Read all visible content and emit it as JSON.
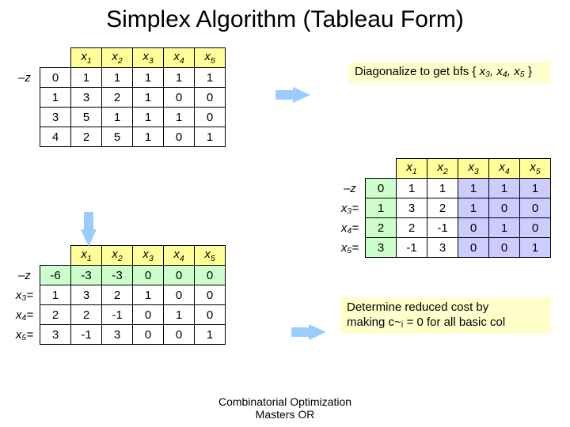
{
  "title": "Simplex Algorithm (Tableau Form)",
  "footer_line1": "Combinatorial Optimization",
  "footer_line2": "Masters OR",
  "note1_pre": "Diagonalize to get bfs { ",
  "note1_vars": "x₃, x₄, x₅",
  "note1_post": " }",
  "note2_line1": "Determine reduced cost by",
  "note2_line2": "making c~ⱼ = 0 for all basic col",
  "headers": {
    "x1": "x",
    "s1": "1",
    "x2": "x",
    "s2": "2",
    "x3": "x",
    "s3": "3",
    "x4": "x",
    "s4": "4",
    "x5": "x",
    "s5": "5"
  },
  "rowlabels": {
    "mz": "–z",
    "x3": "x₃=",
    "x4": "x₄=",
    "x5": "x₅="
  },
  "t1": {
    "r": [
      "0",
      "1",
      "3",
      "4"
    ],
    "d": [
      [
        "1",
        "1",
        "1",
        "1",
        "1"
      ],
      [
        "3",
        "2",
        "1",
        "0",
        "0"
      ],
      [
        "5",
        "1",
        "1",
        "1",
        "0"
      ],
      [
        "2",
        "5",
        "1",
        "0",
        "1"
      ]
    ]
  },
  "t2": {
    "r": [
      "0",
      "1",
      "2",
      "3"
    ],
    "d": [
      [
        "1",
        "1",
        "1",
        "1",
        "1"
      ],
      [
        "3",
        "2",
        "1",
        "0",
        "0"
      ],
      [
        "2",
        "-1",
        "0",
        "1",
        "0"
      ],
      [
        "-1",
        "3",
        "0",
        "0",
        "1"
      ]
    ]
  },
  "t3": {
    "r": [
      "-6",
      "1",
      "2",
      "3"
    ],
    "d": [
      [
        "-3",
        "-3",
        "0",
        "0",
        "0"
      ],
      [
        "3",
        "2",
        "1",
        "0",
        "0"
      ],
      [
        "2",
        "-1",
        "0",
        "1",
        "0"
      ],
      [
        "-1",
        "3",
        "0",
        "0",
        "1"
      ]
    ]
  },
  "colors": {
    "yellow": "#ffff99",
    "green": "#ccffcc",
    "blue": "#ccccff"
  }
}
